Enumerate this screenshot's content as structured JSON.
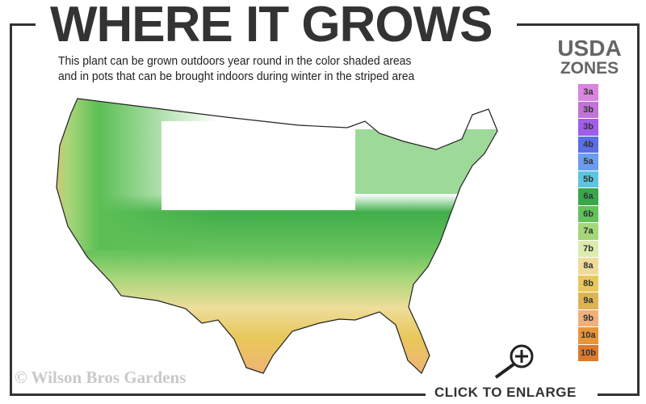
{
  "header": {
    "title": "WHERE IT GROWS",
    "subtitle_line1": "This plant can be grown outdoors year round in the color shaded areas",
    "subtitle_line2": "and in pots that can be brought indoors during winter in the striped area"
  },
  "legend": {
    "title_line1": "USDA",
    "title_line2": "ZONES",
    "zones": [
      {
        "label": "3a",
        "color": "#d886e0"
      },
      {
        "label": "3b",
        "color": "#c074d6"
      },
      {
        "label": "3b",
        "color": "#a25cec"
      },
      {
        "label": "4b",
        "color": "#5a6ee6"
      },
      {
        "label": "5a",
        "color": "#6a9cf0"
      },
      {
        "label": "5b",
        "color": "#5cc4de"
      },
      {
        "label": "6a",
        "color": "#3aa64a"
      },
      {
        "label": "6b",
        "color": "#62c25a"
      },
      {
        "label": "7a",
        "color": "#a6d67a"
      },
      {
        "label": "7b",
        "color": "#dcecac"
      },
      {
        "label": "8a",
        "color": "#eedd9a"
      },
      {
        "label": "8b",
        "color": "#e8c85a"
      },
      {
        "label": "9a",
        "color": "#dcb454"
      },
      {
        "label": "9b",
        "color": "#f0b07a"
      },
      {
        "label": "10a",
        "color": "#ea9438"
      },
      {
        "label": "10b",
        "color": "#dc7a2e"
      }
    ]
  },
  "footer": {
    "watermark": "© Wilson Bros Gardens",
    "enlarge_label": "CLICK TO ENLARGE"
  }
}
